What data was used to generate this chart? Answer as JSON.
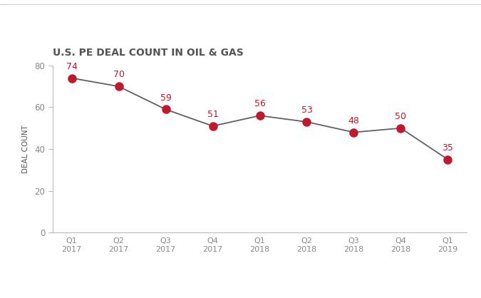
{
  "title": "U.S. PE DEAL COUNT IN OIL & GAS",
  "ylabel": "DEAL COUNT",
  "x_labels": [
    "Q1\n2017",
    "Q2\n2017",
    "Q3\n2017",
    "Q4\n2017",
    "Q1\n2018",
    "Q2\n2018",
    "Q3\n2018",
    "Q4\n2018",
    "Q1\n2019"
  ],
  "values": [
    74,
    70,
    59,
    51,
    56,
    53,
    48,
    50,
    35
  ],
  "ylim": [
    0,
    80
  ],
  "yticks": [
    0,
    20,
    40,
    60,
    80
  ],
  "line_color": "#606060",
  "marker_color": "#c0192d",
  "label_color": "#c0192d",
  "title_color": "#555555",
  "ylabel_color": "#555555",
  "tick_color": "#888888",
  "spine_color": "#bbbbbb",
  "top_line_color": "#cccccc",
  "background_color": "#ffffff",
  "title_fontsize": 10,
  "label_fontsize": 9,
  "ylabel_fontsize": 7.5,
  "xtick_fontsize": 8,
  "ytick_fontsize": 8.5,
  "marker_size": 8,
  "line_width": 1.3
}
